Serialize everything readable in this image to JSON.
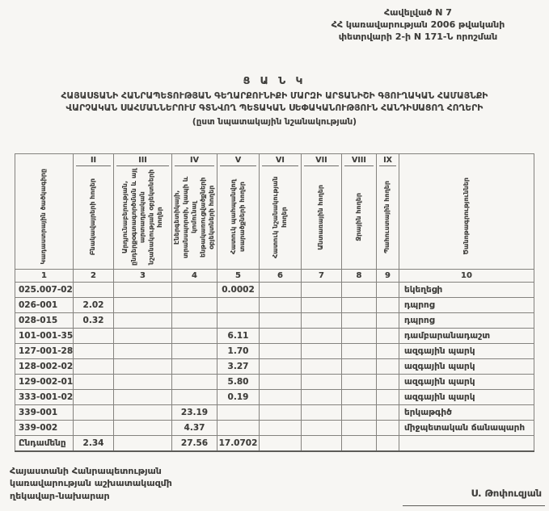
{
  "appendix": {
    "line1": "Հավելված N 7",
    "line2": "ՀՀ կառավարության 2006 թվականի",
    "line3": "փետրվարի 2-ի N 171-Ն որոշման"
  },
  "title": "Ց Ա Ն Կ",
  "subtitle": {
    "line1": "ՀԱՅԱՍՏԱՆԻ ՀԱՆՐԱՊԵՏՈՒԹՅԱՆ ԳԵՂԱՐՔՈՒՆԻՔԻ ՄԱՐԶԻ ԱՐՏԱՆԻՇԻ ԳՅՈՒՂԱԿԱՆ ՀԱՄԱՅՆՔԻ",
    "line2": "ՎԱՐՉԱԿԱՆ ՍԱՀՄԱՆՆԵՐՈՒՄ ԳՏՆՎՈՂ ՊԵՏԱԿԱՆ ՍԵՓԱԿԱՆՈՒԹՅՈՒՆ ՀԱՆԴԻՍԱՑՈՂ ՀՈՂԵՐԻ",
    "line3": "(ըստ նպատակային նշանակության)"
  },
  "table": {
    "columns": [
      {
        "roman": "",
        "label": "Կադաստրային ծածկագիրը",
        "num": "1"
      },
      {
        "roman": "II",
        "label": "Բնակավայրերի հողեր",
        "num": "2"
      },
      {
        "roman": "III",
        "label": "Արդյունաբերության, ընդերքօգտագործման և այլ արտադրական նշանակության օբյեկտների հողեր",
        "num": "3"
      },
      {
        "roman": "IV",
        "label": "Էներգետիկայի, տրանսպորտի, կապի և կոմունալ ենթակառուցվածքների օբյեկտների հողեր",
        "num": "4"
      },
      {
        "roman": "V",
        "label": "Հատուկ պահպանվող տարածքների հողեր",
        "num": "5"
      },
      {
        "roman": "VI",
        "label": "Հատուկ նշանակության հողեր",
        "num": "6"
      },
      {
        "roman": "VII",
        "label": "Անտառային հողեր",
        "num": "7"
      },
      {
        "roman": "VIII",
        "label": "Ջրային հողեր",
        "num": "8"
      },
      {
        "roman": "IX",
        "label": "Պահուստային հողեր",
        "num": "9"
      },
      {
        "roman": "",
        "label": "Ծանոթագրություններ",
        "num": "10"
      }
    ],
    "rows": [
      [
        "025.007-02",
        "",
        "",
        "",
        "0.0002",
        "",
        "",
        "",
        "",
        "եկեղեցի"
      ],
      [
        "026-001",
        "2.02",
        "",
        "",
        "",
        "",
        "",
        "",
        "",
        "դպրոց"
      ],
      [
        "028-015",
        "0.32",
        "",
        "",
        "",
        "",
        "",
        "",
        "",
        "դպրոց"
      ],
      [
        "101-001-35",
        "",
        "",
        "",
        "6.11",
        "",
        "",
        "",
        "",
        "դամբարանադաշտ"
      ],
      [
        "127-001-28",
        "",
        "",
        "",
        "1.70",
        "",
        "",
        "",
        "",
        "ազգային պարկ"
      ],
      [
        "128-002-02",
        "",
        "",
        "",
        "3.27",
        "",
        "",
        "",
        "",
        "ազգային պարկ"
      ],
      [
        "129-002-01",
        "",
        "",
        "",
        "5.80",
        "",
        "",
        "",
        "",
        "ազգային պարկ"
      ],
      [
        "333-001-02",
        "",
        "",
        "",
        "0.19",
        "",
        "",
        "",
        "",
        "ազգային պարկ"
      ],
      [
        "339-001",
        "",
        "",
        "23.19",
        "",
        "",
        "",
        "",
        "",
        "երկաթգիծ"
      ],
      [
        "339-002",
        "",
        "",
        "4.37",
        "",
        "",
        "",
        "",
        "",
        "միջպետական ճանապարհ"
      ],
      [
        "Ընդամենը",
        "2.34",
        "",
        "27.56",
        "17.0702",
        "",
        "",
        "",
        "",
        ""
      ]
    ]
  },
  "footer": {
    "line1": "Հայաստանի Հանրապետության",
    "line2": "կառավարության աշխատակազմի",
    "line3": "ղեկավար-նախարար"
  },
  "signature": "Ս. Թոփուզյան",
  "colors": {
    "paper": "#f7f6f3",
    "ink": "#3f3e3b",
    "border": "#84827e"
  }
}
